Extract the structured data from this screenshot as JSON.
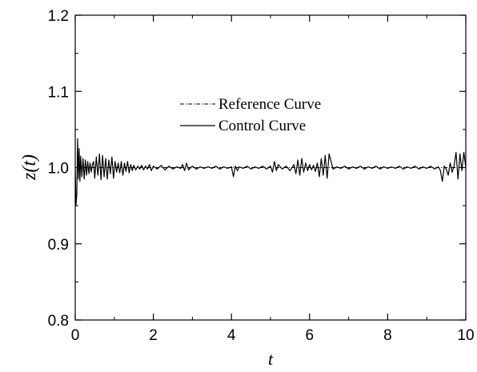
{
  "chart_data": {
    "type": "line",
    "xlabel": "t",
    "ylabel": "z(t)",
    "xlim": [
      0,
      10
    ],
    "ylim": [
      0.8,
      1.2
    ],
    "x_ticks": [
      0,
      2,
      4,
      6,
      8,
      10
    ],
    "x_tick_labels": [
      "0",
      "2",
      "4",
      "6",
      "8",
      "10"
    ],
    "y_ticks": [
      0.8,
      0.9,
      1.0,
      1.1,
      1.2
    ],
    "y_tick_labels": [
      "0.8",
      "0.9",
      "1.0",
      "1.1",
      "1.2"
    ],
    "grid": false,
    "legend_position": "center-upper",
    "series": [
      {
        "name": "Reference Curve",
        "style": "dash-dot",
        "color": "#000000",
        "x": [
          0,
          10
        ],
        "y": [
          1.0,
          1.0
        ]
      },
      {
        "name": "Control Curve",
        "style": "solid",
        "color": "#000000",
        "x": [
          0.0,
          0.02,
          0.04,
          0.06,
          0.08,
          0.1,
          0.12,
          0.14,
          0.17,
          0.2,
          0.23,
          0.26,
          0.29,
          0.32,
          0.35,
          0.38,
          0.41,
          0.44,
          0.47,
          0.5,
          0.54,
          0.58,
          0.62,
          0.66,
          0.7,
          0.74,
          0.78,
          0.82,
          0.86,
          0.9,
          0.94,
          0.98,
          1.02,
          1.06,
          1.1,
          1.14,
          1.18,
          1.22,
          1.26,
          1.3,
          1.34,
          1.38,
          1.42,
          1.46,
          1.5,
          1.55,
          1.6,
          1.65,
          1.7,
          1.75,
          1.8,
          1.85,
          1.9,
          1.95,
          2.0,
          2.1,
          2.2,
          2.3,
          2.4,
          2.5,
          2.6,
          2.7,
          2.75,
          2.8,
          2.85,
          2.9,
          3.0,
          3.1,
          3.2,
          3.3,
          3.4,
          3.5,
          3.6,
          3.7,
          3.8,
          3.9,
          4.0,
          4.05,
          4.1,
          4.15,
          4.2,
          4.3,
          4.4,
          4.5,
          4.6,
          4.7,
          4.8,
          4.9,
          5.0,
          5.05,
          5.1,
          5.15,
          5.2,
          5.3,
          5.4,
          5.5,
          5.6,
          5.65,
          5.7,
          5.75,
          5.8,
          5.85,
          5.9,
          5.95,
          6.0,
          6.05,
          6.1,
          6.15,
          6.2,
          6.25,
          6.3,
          6.35,
          6.4,
          6.45,
          6.5,
          6.6,
          6.7,
          6.8,
          6.9,
          7.0,
          7.1,
          7.2,
          7.3,
          7.4,
          7.5,
          7.6,
          7.7,
          7.8,
          7.9,
          8.0,
          8.1,
          8.2,
          8.3,
          8.4,
          8.5,
          8.6,
          8.7,
          8.8,
          8.9,
          9.0,
          9.1,
          9.2,
          9.3,
          9.35,
          9.4,
          9.45,
          9.5,
          9.55,
          9.6,
          9.65,
          9.7,
          9.75,
          9.8,
          9.85,
          9.9,
          9.95,
          10.0
        ],
        "y": [
          1.0,
          0.951,
          0.965,
          1.038,
          0.985,
          1.025,
          0.982,
          1.015,
          0.988,
          1.012,
          0.985,
          1.01,
          0.99,
          1.008,
          0.992,
          1.006,
          0.994,
          1.004,
          1.008,
          0.986,
          1.014,
          0.99,
          1.018,
          0.984,
          1.016,
          0.988,
          1.012,
          0.985,
          1.01,
          0.992,
          1.014,
          0.986,
          1.008,
          0.994,
          1.006,
          0.993,
          1.008,
          0.99,
          1.006,
          0.995,
          1.008,
          0.993,
          1.004,
          0.996,
          1.003,
          0.997,
          1.002,
          0.998,
          1.003,
          0.997,
          1.002,
          0.998,
          1.004,
          0.996,
          1.002,
          0.998,
          1.003,
          0.997,
          1.002,
          0.998,
          1.001,
          0.999,
          1.004,
          0.996,
          1.006,
          0.997,
          1.002,
          0.998,
          1.001,
          0.999,
          1.001,
          0.999,
          1.002,
          0.998,
          1.001,
          0.999,
          1.001,
          0.988,
          1.002,
          0.996,
          1.001,
          0.999,
          1.002,
          0.998,
          1.001,
          0.999,
          1.002,
          0.998,
          1.002,
          0.994,
          1.008,
          0.996,
          1.004,
          0.998,
          1.002,
          0.996,
          1.004,
          0.992,
          1.01,
          0.99,
          1.012,
          0.994,
          1.006,
          0.996,
          1.004,
          0.997,
          1.003,
          0.995,
          1.006,
          0.988,
          1.012,
          0.99,
          1.016,
          0.986,
          1.018,
          0.998,
          1.001,
          0.999,
          1.002,
          0.998,
          1.001,
          0.999,
          1.002,
          0.998,
          1.001,
          0.999,
          1.002,
          0.998,
          1.001,
          0.999,
          1.001,
          0.999,
          1.002,
          0.998,
          1.001,
          0.999,
          1.002,
          0.998,
          1.001,
          0.999,
          1.002,
          0.998,
          1.001,
          0.996,
          0.982,
          1.002,
          0.998,
          0.99,
          1.006,
          0.994,
          1.002,
          1.02,
          0.985,
          1.018,
          0.996,
          1.02,
          1.0
        ]
      }
    ]
  }
}
